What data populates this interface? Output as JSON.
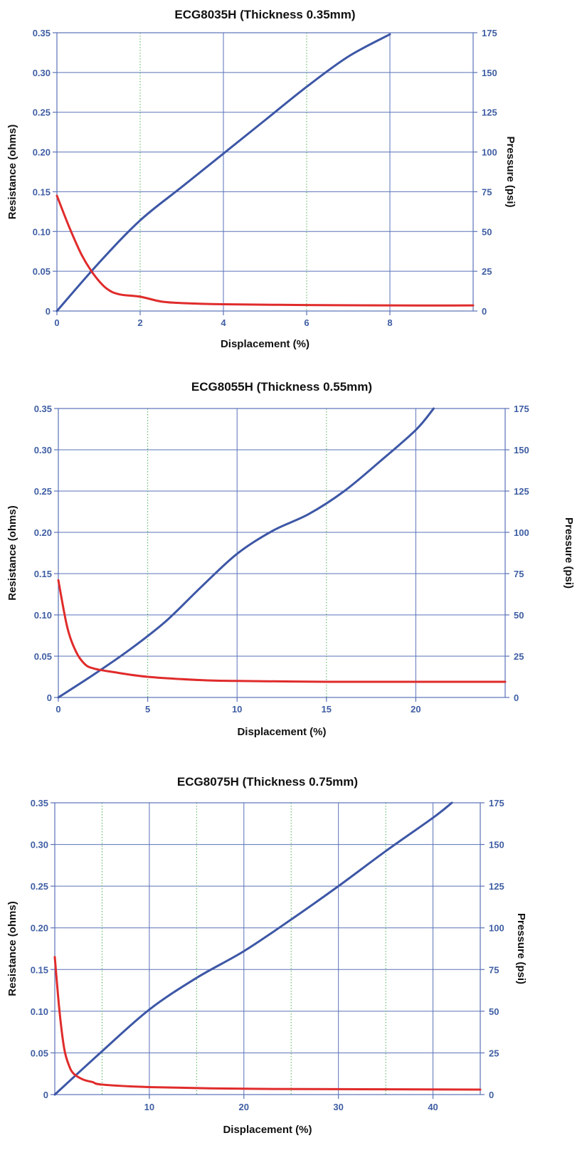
{
  "colors": {
    "pressure_line": "#3d57a6",
    "resistance_line": "#e02b2b",
    "grid_major": "#5a72b8",
    "grid_minor": "#4caf50",
    "frame": "#5a72b8",
    "tick_text": "#3f5ea3"
  },
  "chart_data": [
    {
      "type": "line",
      "title": "ECG8035H (Thickness 0.35mm)",
      "xlabel": "Displacement (%)",
      "ylabel_left": "Resistance (ohms)",
      "ylabel_right": "Pressure (psi)",
      "xlim": [
        0,
        10
      ],
      "ylim_left": [
        0,
        0.35
      ],
      "ylim_right": [
        0,
        175
      ],
      "x_major_ticks": [
        0,
        2,
        4,
        6,
        8
      ],
      "x_tick_labels": [
        "0",
        "2",
        "4",
        "6",
        "8"
      ],
      "x_major_grid": [
        4,
        8
      ],
      "x_minor_grid": [
        2,
        6
      ],
      "y_left_ticks": [
        0,
        0.05,
        0.1,
        0.15,
        0.2,
        0.25,
        0.3,
        0.35
      ],
      "y_left_tick_labels": [
        "0",
        "0.05",
        "0.10",
        "0.15",
        "0.20",
        "0.25",
        "0.30",
        "0.35"
      ],
      "y_right_ticks": [
        0,
        25,
        50,
        75,
        100,
        125,
        150,
        175
      ],
      "y_right_tick_labels": [
        "0",
        "25",
        "50",
        "75",
        "100",
        "125",
        "150",
        "175"
      ],
      "grid": true,
      "series": [
        {
          "axis": "right",
          "color": "pressure_line",
          "x": [
            0,
            1,
            2,
            3,
            4,
            5,
            6,
            7,
            8
          ],
          "y": [
            0,
            30,
            57,
            78,
            99,
            120,
            141,
            160,
            174
          ]
        },
        {
          "axis": "left",
          "color": "resistance_line",
          "x": [
            0,
            0.3,
            0.6,
            0.9,
            1.2,
            1.5,
            2,
            2.5,
            3,
            4,
            6,
            8,
            10
          ],
          "y": [
            0.145,
            0.105,
            0.07,
            0.045,
            0.028,
            0.021,
            0.018,
            0.012,
            0.01,
            0.0085,
            0.0075,
            0.007,
            0.007
          ]
        }
      ]
    },
    {
      "type": "line",
      "title": "ECG8055H (Thickness 0.55mm)",
      "xlabel": "Displacement (%)",
      "ylabel_left": "Resistance (ohms)",
      "ylabel_right": "Pressure (psi)",
      "xlim": [
        0,
        25
      ],
      "ylim_left": [
        0,
        0.35
      ],
      "ylim_right": [
        0,
        175
      ],
      "x_major_ticks": [
        0,
        5,
        10,
        15,
        20
      ],
      "x_tick_labels": [
        "0",
        "5",
        "10",
        "15",
        "20"
      ],
      "x_major_grid": [
        10,
        20
      ],
      "x_minor_grid": [
        5,
        15
      ],
      "y_left_ticks": [
        0,
        0.05,
        0.1,
        0.15,
        0.2,
        0.25,
        0.3,
        0.35
      ],
      "y_left_tick_labels": [
        "0",
        "0.05",
        "0.10",
        "0.15",
        "0.20",
        "0.25",
        "0.30",
        "0.35"
      ],
      "y_right_ticks": [
        0,
        25,
        50,
        75,
        100,
        125,
        150,
        175
      ],
      "y_right_tick_labels": [
        "0",
        "25",
        "50",
        "75",
        "100",
        "125",
        "150",
        "175"
      ],
      "grid": true,
      "series": [
        {
          "axis": "right",
          "color": "pressure_line",
          "x": [
            0,
            2,
            4,
            6,
            8,
            10,
            12,
            14,
            16,
            18,
            20,
            21
          ],
          "y": [
            0,
            14,
            29,
            46,
            67,
            87,
            101,
            111,
            125,
            143,
            162,
            175
          ]
        },
        {
          "axis": "left",
          "color": "resistance_line",
          "x": [
            0,
            0.5,
            1,
            1.5,
            2,
            3,
            5,
            8,
            10,
            15,
            20,
            25
          ],
          "y": [
            0.142,
            0.085,
            0.055,
            0.04,
            0.035,
            0.031,
            0.025,
            0.021,
            0.02,
            0.019,
            0.019,
            0.019
          ]
        }
      ]
    },
    {
      "type": "line",
      "title": "ECG8075H (Thickness 0.75mm)",
      "xlabel": "Displacement (%)",
      "ylabel_left": "Resistance (ohms)",
      "ylabel_right": "Pressure (psi)",
      "xlim": [
        0,
        45
      ],
      "ylim_left": [
        0,
        0.35
      ],
      "ylim_right": [
        0,
        175
      ],
      "x_major_ticks": [
        10,
        20,
        30,
        40
      ],
      "x_tick_labels": [
        "10",
        "20",
        "30",
        "40"
      ],
      "x_major_grid": [
        10,
        20,
        30,
        40
      ],
      "x_minor_grid": [
        5,
        15,
        25,
        35
      ],
      "y_left_ticks": [
        0,
        0.05,
        0.1,
        0.15,
        0.2,
        0.25,
        0.3,
        0.35
      ],
      "y_left_tick_labels": [
        "0",
        "0.05",
        "0.10",
        "0.15",
        "0.20",
        "0.25",
        "0.30",
        "0.35"
      ],
      "y_right_ticks": [
        0,
        25,
        50,
        75,
        100,
        125,
        150,
        175
      ],
      "y_right_tick_labels": [
        "0",
        "25",
        "50",
        "75",
        "100",
        "125",
        "150",
        "175"
      ],
      "grid": true,
      "series": [
        {
          "axis": "right",
          "color": "pressure_line",
          "x": [
            0,
            5,
            10,
            15,
            20,
            25,
            30,
            35,
            40,
            42
          ],
          "y": [
            0,
            26,
            51,
            70,
            86,
            105,
            125,
            146,
            166,
            175
          ]
        },
        {
          "axis": "left",
          "color": "resistance_line",
          "x": [
            0,
            0.5,
            1,
            1.5,
            2,
            3,
            4,
            5,
            10,
            20,
            30,
            45
          ],
          "y": [
            0.165,
            0.1,
            0.055,
            0.035,
            0.025,
            0.018,
            0.015,
            0.012,
            0.009,
            0.007,
            0.0065,
            0.006
          ]
        }
      ]
    }
  ]
}
